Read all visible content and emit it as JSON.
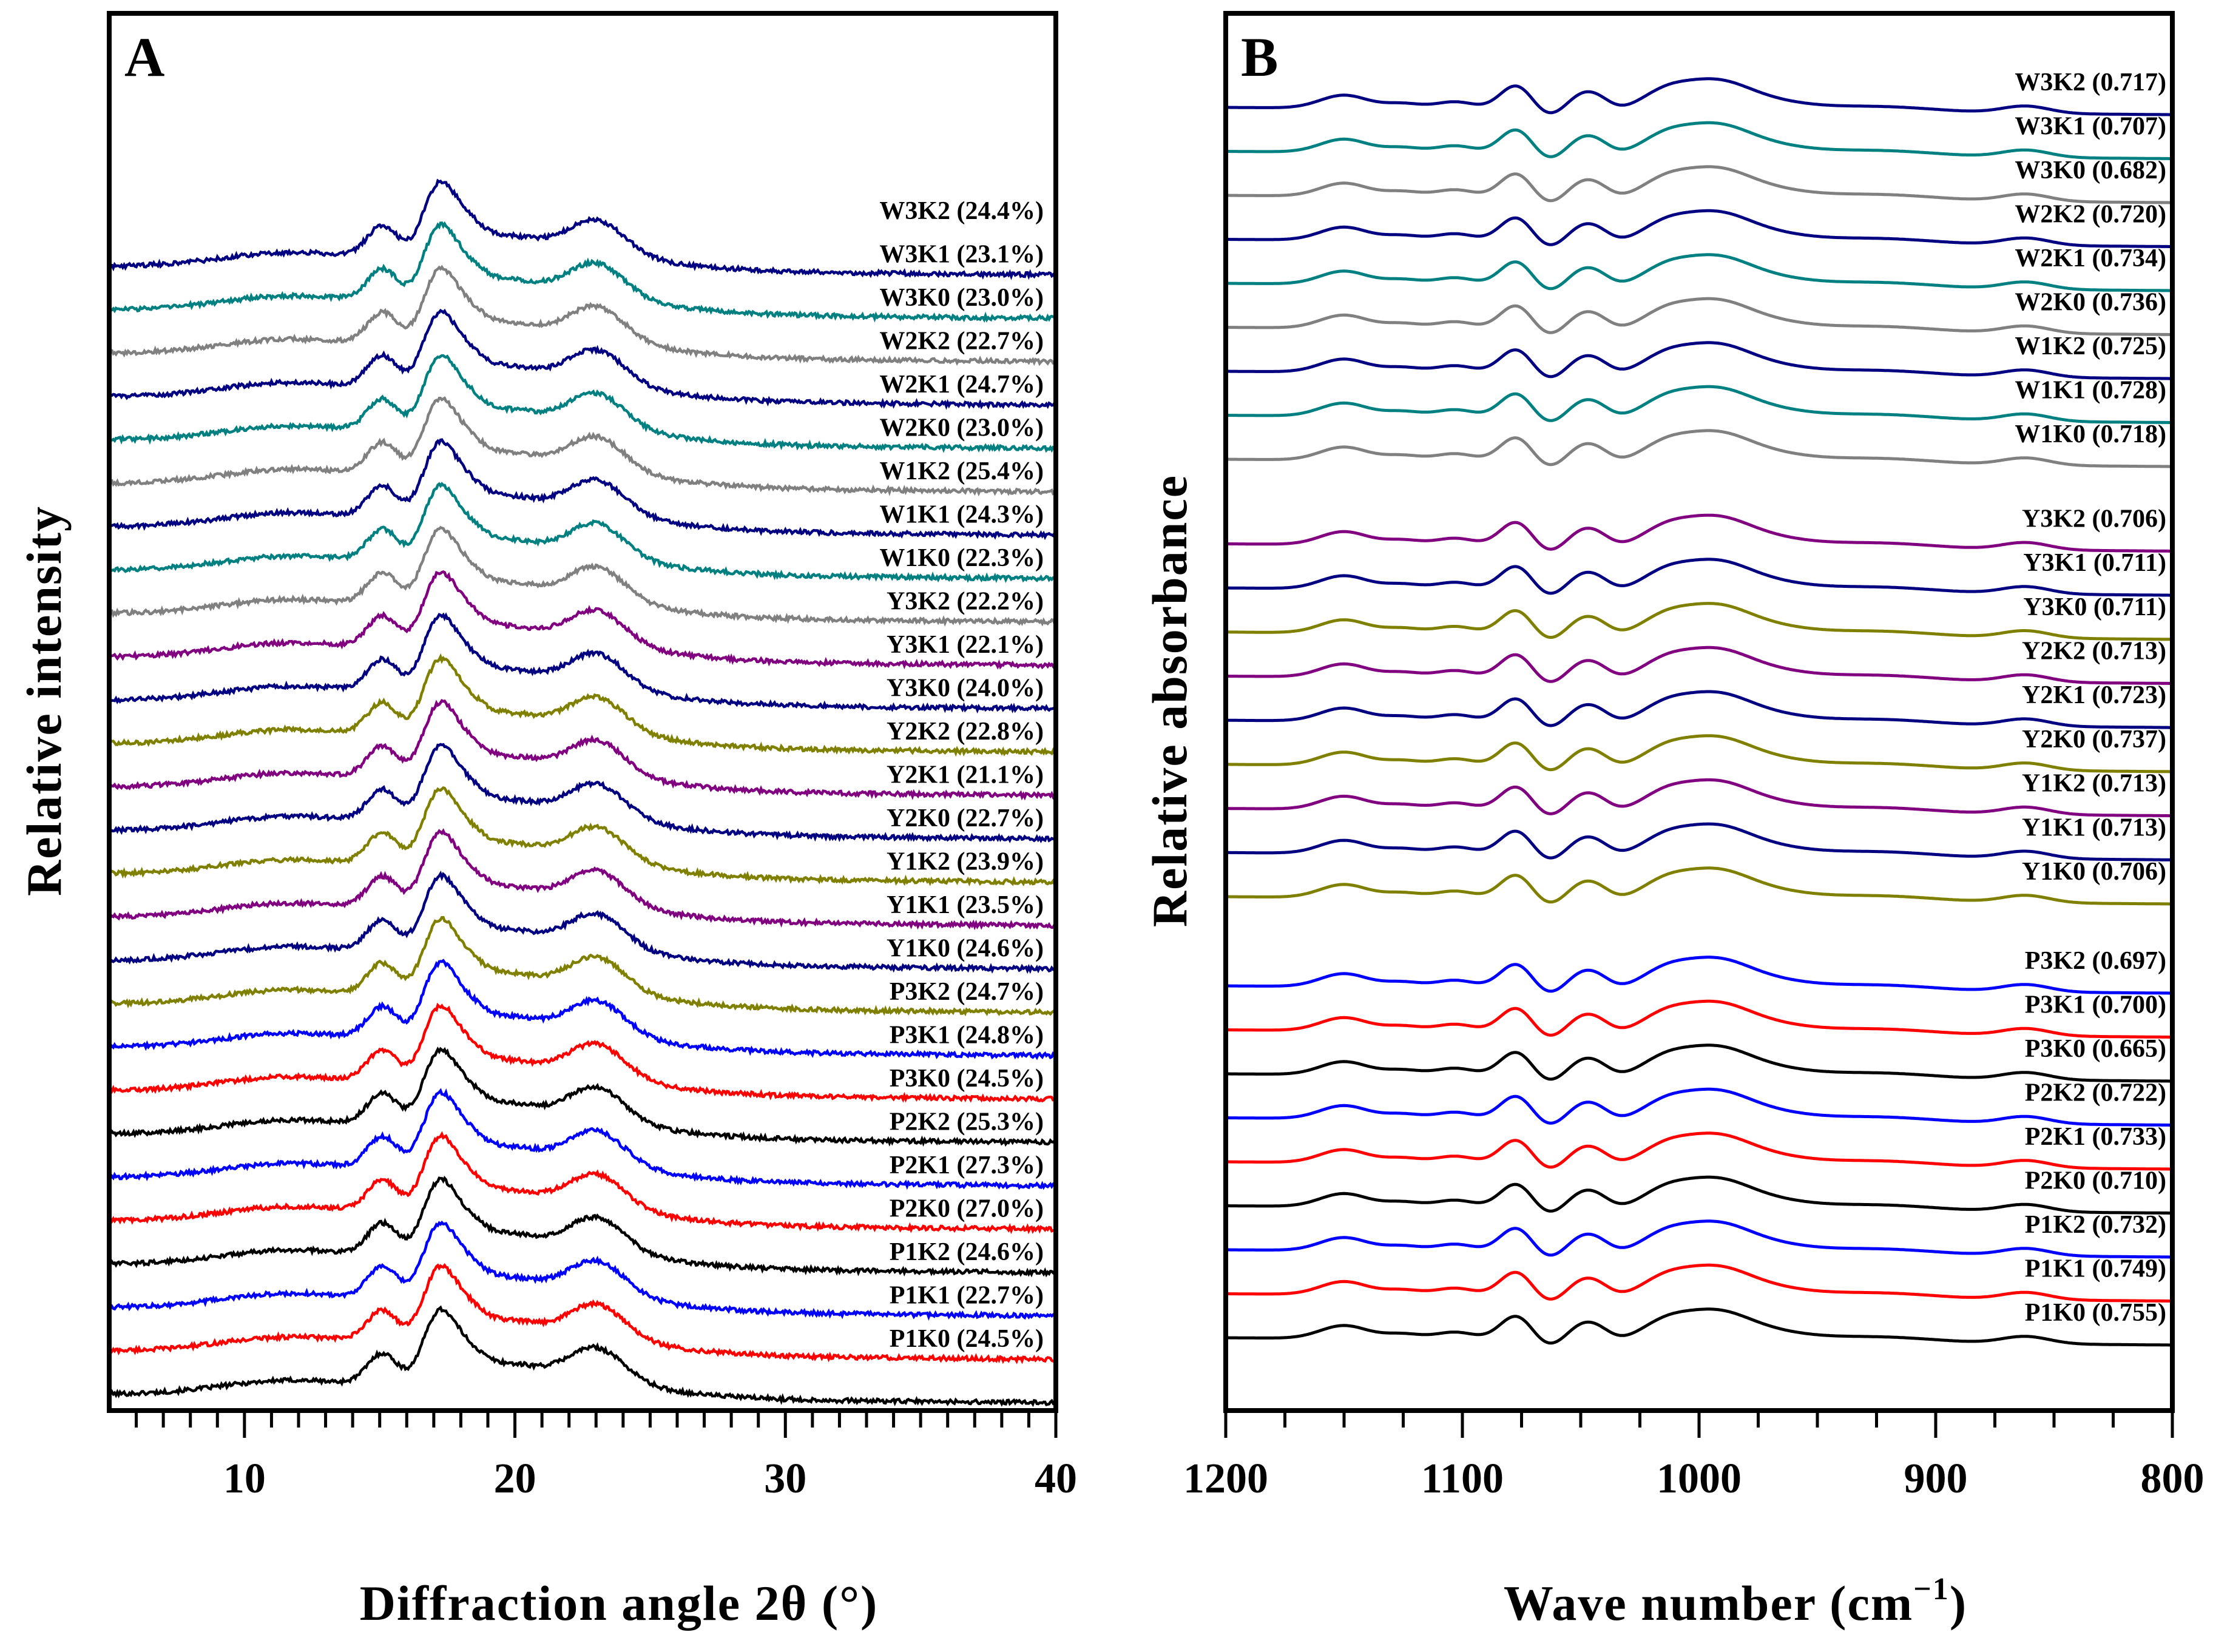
{
  "chart_data": [
    {
      "panel": "A",
      "type": "line",
      "xlabel": "Diffraction angle 2θ (°)",
      "ylabel": "Relative intensity",
      "xlim": [
        5,
        40
      ],
      "xticks": [
        10,
        20,
        30,
        40
      ],
      "xtick_labels": [
        "10",
        "20",
        "30",
        "40"
      ],
      "grid": false,
      "peaks_2theta": [
        15.1,
        17.1,
        18.0,
        23.0
      ],
      "series": [
        {
          "name": "P1K0 (24.5%)",
          "color": "#000000",
          "crystallinity": 24.5
        },
        {
          "name": "P1K1 (22.7%)",
          "color": "#ff0000",
          "crystallinity": 22.7
        },
        {
          "name": "P1K2 (24.6%)",
          "color": "#0000ff",
          "crystallinity": 24.6
        },
        {
          "name": "P2K0 (27.0%)",
          "color": "#000000",
          "crystallinity": 27.0
        },
        {
          "name": "P2K1 (27.3%)",
          "color": "#ff0000",
          "crystallinity": 27.3
        },
        {
          "name": "P2K2 (25.3%)",
          "color": "#0000ff",
          "crystallinity": 25.3
        },
        {
          "name": "P3K0 (24.5%)",
          "color": "#000000",
          "crystallinity": 24.5
        },
        {
          "name": "P3K1 (24.8%)",
          "color": "#ff0000",
          "crystallinity": 24.8
        },
        {
          "name": "P3K2 (24.7%)",
          "color": "#0000ff",
          "crystallinity": 24.7
        },
        {
          "name": "Y1K0 (24.6%)",
          "color": "#808000",
          "crystallinity": 24.6
        },
        {
          "name": "Y1K1 (23.5%)",
          "color": "#000080",
          "crystallinity": 23.5
        },
        {
          "name": "Y1K2 (23.9%)",
          "color": "#800080",
          "crystallinity": 23.9
        },
        {
          "name": "Y2K0 (22.7%)",
          "color": "#808000",
          "crystallinity": 22.7
        },
        {
          "name": "Y2K1 (21.1%)",
          "color": "#000080",
          "crystallinity": 21.1
        },
        {
          "name": "Y2K2 (22.8%)",
          "color": "#800080",
          "crystallinity": 22.8
        },
        {
          "name": "Y3K0 (24.0%)",
          "color": "#808000",
          "crystallinity": 24.0
        },
        {
          "name": "Y3K1 (22.1%)",
          "color": "#000080",
          "crystallinity": 22.1
        },
        {
          "name": "Y3K2 (22.2%)",
          "color": "#800080",
          "crystallinity": 22.2
        },
        {
          "name": "W1K0 (22.3%)",
          "color": "#808080",
          "crystallinity": 22.3
        },
        {
          "name": "W1K1 (24.3%)",
          "color": "#008080",
          "crystallinity": 24.3
        },
        {
          "name": "W1K2 (25.4%)",
          "color": "#000080",
          "crystallinity": 25.4
        },
        {
          "name": "W2K0 (23.0%)",
          "color": "#808080",
          "crystallinity": 23.0
        },
        {
          "name": "W2K1 (24.7%)",
          "color": "#008080",
          "crystallinity": 24.7
        },
        {
          "name": "W2K2 (22.7%)",
          "color": "#000080",
          "crystallinity": 22.7
        },
        {
          "name": "W3K0 (23.0%)",
          "color": "#808080",
          "crystallinity": 23.0
        },
        {
          "name": "W3K1 (23.1%)",
          "color": "#008080",
          "crystallinity": 23.1
        },
        {
          "name": "W3K2 (24.4%)",
          "color": "#000080",
          "crystallinity": 24.4
        }
      ]
    },
    {
      "panel": "B",
      "type": "line",
      "xlabel": "Wave number (cm",
      "xlabel_sup": "−1",
      "xlabel_end": ")",
      "ylabel": "Relative absorbance",
      "xlim": [
        1200,
        800
      ],
      "xticks": [
        1200,
        1100,
        1000,
        900,
        800
      ],
      "xtick_labels": [
        "1200",
        "1100",
        "1000",
        "900",
        "800"
      ],
      "grid": false,
      "series": [
        {
          "name": "P1K0 (0.755)",
          "color": "#000000",
          "ratio": 0.755
        },
        {
          "name": "P1K1 (0.749)",
          "color": "#ff0000",
          "ratio": 0.749
        },
        {
          "name": "P1K2 (0.732)",
          "color": "#0000ff",
          "ratio": 0.732
        },
        {
          "name": "P2K0 (0.710)",
          "color": "#000000",
          "ratio": 0.71
        },
        {
          "name": "P2K1 (0.733)",
          "color": "#ff0000",
          "ratio": 0.733
        },
        {
          "name": "P2K2 (0.722)",
          "color": "#0000ff",
          "ratio": 0.722
        },
        {
          "name": "P3K0 (0.665)",
          "color": "#000000",
          "ratio": 0.665
        },
        {
          "name": "P3K1 (0.700)",
          "color": "#ff0000",
          "ratio": 0.7
        },
        {
          "name": "P3K2 (0.697)",
          "color": "#0000ff",
          "ratio": 0.697
        },
        {
          "name": "Y1K0 (0.706)",
          "color": "#808000",
          "ratio": 0.706
        },
        {
          "name": "Y1K1 (0.713)",
          "color": "#000080",
          "ratio": 0.713
        },
        {
          "name": "Y1K2 (0.713)",
          "color": "#800080",
          "ratio": 0.713
        },
        {
          "name": "Y2K0 (0.737)",
          "color": "#808000",
          "ratio": 0.737
        },
        {
          "name": "Y2K1 (0.723)",
          "color": "#000080",
          "ratio": 0.723
        },
        {
          "name": "Y2K2 (0.713)",
          "color": "#800080",
          "ratio": 0.713
        },
        {
          "name": "Y3K0 (0.711)",
          "color": "#808000",
          "ratio": 0.711
        },
        {
          "name": "Y3K1 (0.711)",
          "color": "#000080",
          "ratio": 0.711
        },
        {
          "name": "Y3K2 (0.706)",
          "color": "#800080",
          "ratio": 0.706
        },
        {
          "name": "W1K0 (0.718)",
          "color": "#808080",
          "ratio": 0.718
        },
        {
          "name": "W1K1 (0.728)",
          "color": "#008080",
          "ratio": 0.728
        },
        {
          "name": "W1K2 (0.725)",
          "color": "#000080",
          "ratio": 0.725
        },
        {
          "name": "W2K0 (0.736)",
          "color": "#808080",
          "ratio": 0.736
        },
        {
          "name": "W2K1 (0.734)",
          "color": "#008080",
          "ratio": 0.734
        },
        {
          "name": "W2K2 (0.720)",
          "color": "#000080",
          "ratio": 0.72
        },
        {
          "name": "W3K0 (0.682)",
          "color": "#808080",
          "ratio": 0.682
        },
        {
          "name": "W3K1 (0.707)",
          "color": "#008080",
          "ratio": 0.707
        },
        {
          "name": "W3K2 (0.717)",
          "color": "#000080",
          "ratio": 0.717
        }
      ]
    }
  ]
}
